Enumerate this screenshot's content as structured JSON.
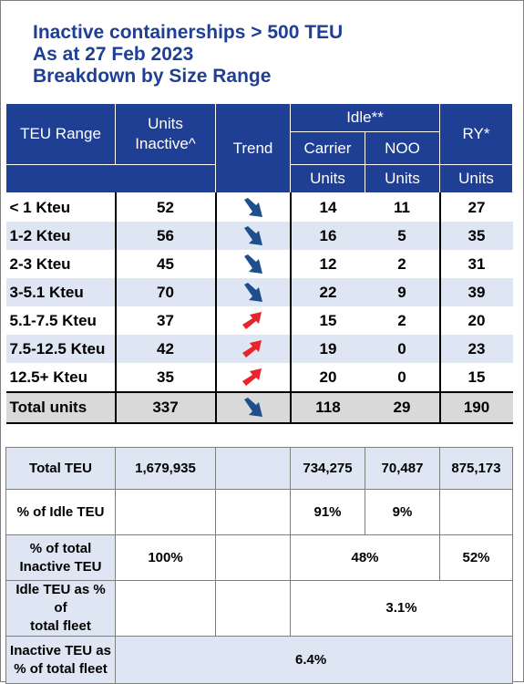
{
  "title": {
    "line1": "Inactive containerships > 500 TEU",
    "line2": "As at 27 Feb 2023",
    "line3": "Breakdown by Size Range"
  },
  "header": {
    "teu_range": "TEU Range",
    "units_inactive_1": "Units",
    "units_inactive_2": "Inactive^",
    "trend": "Trend",
    "idle": "Idle**",
    "ry": "RY*",
    "carrier": "Carrier",
    "noo": "NOO",
    "carrier_units": "Units",
    "noo_units": "Units",
    "ry_units": "Units"
  },
  "colors": {
    "header_bg": "#1f3f95",
    "row_alt": "#dde6f2",
    "trend_down": "#1f4e8c",
    "trend_up": "#e8252b"
  },
  "rows": [
    {
      "range": "< 1 Kteu",
      "inactive": "52",
      "trend": "down",
      "carrier": "14",
      "noo": "11",
      "ry": "27"
    },
    {
      "range": "1-2 Kteu",
      "inactive": "56",
      "trend": "down",
      "carrier": "16",
      "noo": "5",
      "ry": "35"
    },
    {
      "range": "2-3 Kteu",
      "inactive": "45",
      "trend": "down",
      "carrier": "12",
      "noo": "2",
      "ry": "31"
    },
    {
      "range": "3-5.1 Kteu",
      "inactive": "70",
      "trend": "down",
      "carrier": "22",
      "noo": "9",
      "ry": "39"
    },
    {
      "range": "5.1-7.5 Kteu",
      "inactive": "37",
      "trend": "up",
      "carrier": "15",
      "noo": "2",
      "ry": "20"
    },
    {
      "range": "7.5-12.5 Kteu",
      "inactive": "42",
      "trend": "up",
      "carrier": "19",
      "noo": "0",
      "ry": "23"
    },
    {
      "range": "12.5+ Kteu",
      "inactive": "35",
      "trend": "up",
      "carrier": "20",
      "noo": "0",
      "ry": "15"
    }
  ],
  "total": {
    "range": "Total units",
    "inactive": "337",
    "trend": "down",
    "carrier": "118",
    "noo": "29",
    "ry": "190"
  },
  "summary": {
    "total_teu": {
      "label": "Total TEU",
      "inactive": "1,679,935",
      "carrier": "734,275",
      "noo": "70,487",
      "ry": "875,173"
    },
    "pct_idle_teu": {
      "label": "% of Idle TEU",
      "carrier": "91%",
      "noo": "9%"
    },
    "pct_total_inactive": {
      "label_1": "% of total",
      "label_2": "Inactive TEU",
      "inactive": "100%",
      "idle": "48%",
      "ry": "52%"
    },
    "idle_pct_fleet": {
      "label_1": "Idle TEU as % of",
      "label_2": "total fleet",
      "value": "3.1%"
    },
    "inactive_pct_fleet": {
      "label_1": "Inactive TEU as",
      "label_2": "% of total fleet",
      "value": "6.4%"
    }
  }
}
